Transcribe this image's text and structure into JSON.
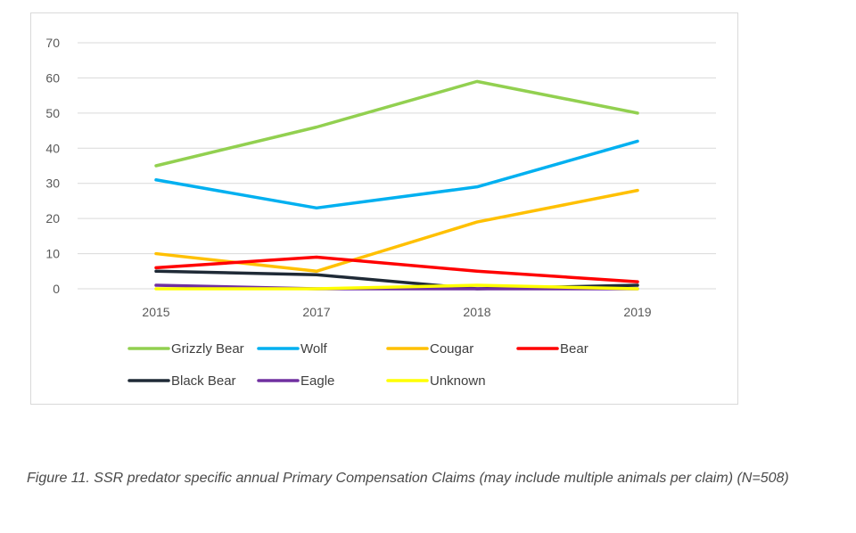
{
  "chart_data": {
    "type": "line",
    "categories": [
      "2015",
      "2017",
      "2018",
      "2019"
    ],
    "ylim": [
      0,
      70
    ],
    "yticks": [
      0,
      10,
      20,
      30,
      40,
      50,
      60,
      70
    ],
    "grid": true,
    "legend_position": "bottom",
    "series": [
      {
        "name": "Grizzly Bear",
        "color": "#92d050",
        "values": [
          35,
          46,
          59,
          50
        ]
      },
      {
        "name": "Wolf",
        "color": "#00b0f0",
        "values": [
          31,
          23,
          29,
          42
        ]
      },
      {
        "name": "Cougar",
        "color": "#ffc000",
        "values": [
          10,
          5,
          19,
          28
        ]
      },
      {
        "name": "Bear",
        "color": "#ff0000",
        "values": [
          6,
          9,
          5,
          2
        ]
      },
      {
        "name": "Black Bear",
        "color": "#1f2a36",
        "values": [
          5,
          4,
          0,
          1
        ]
      },
      {
        "name": "Eagle",
        "color": "#7030a0",
        "values": [
          1,
          0,
          0,
          0
        ]
      },
      {
        "name": "Unknown",
        "color": "#ffff00",
        "values": [
          0,
          0,
          1,
          0
        ]
      }
    ]
  },
  "caption": "Figure 11. SSR predator specific annual Primary Compensation Claims (may include multiple animals per claim) (N=508)"
}
